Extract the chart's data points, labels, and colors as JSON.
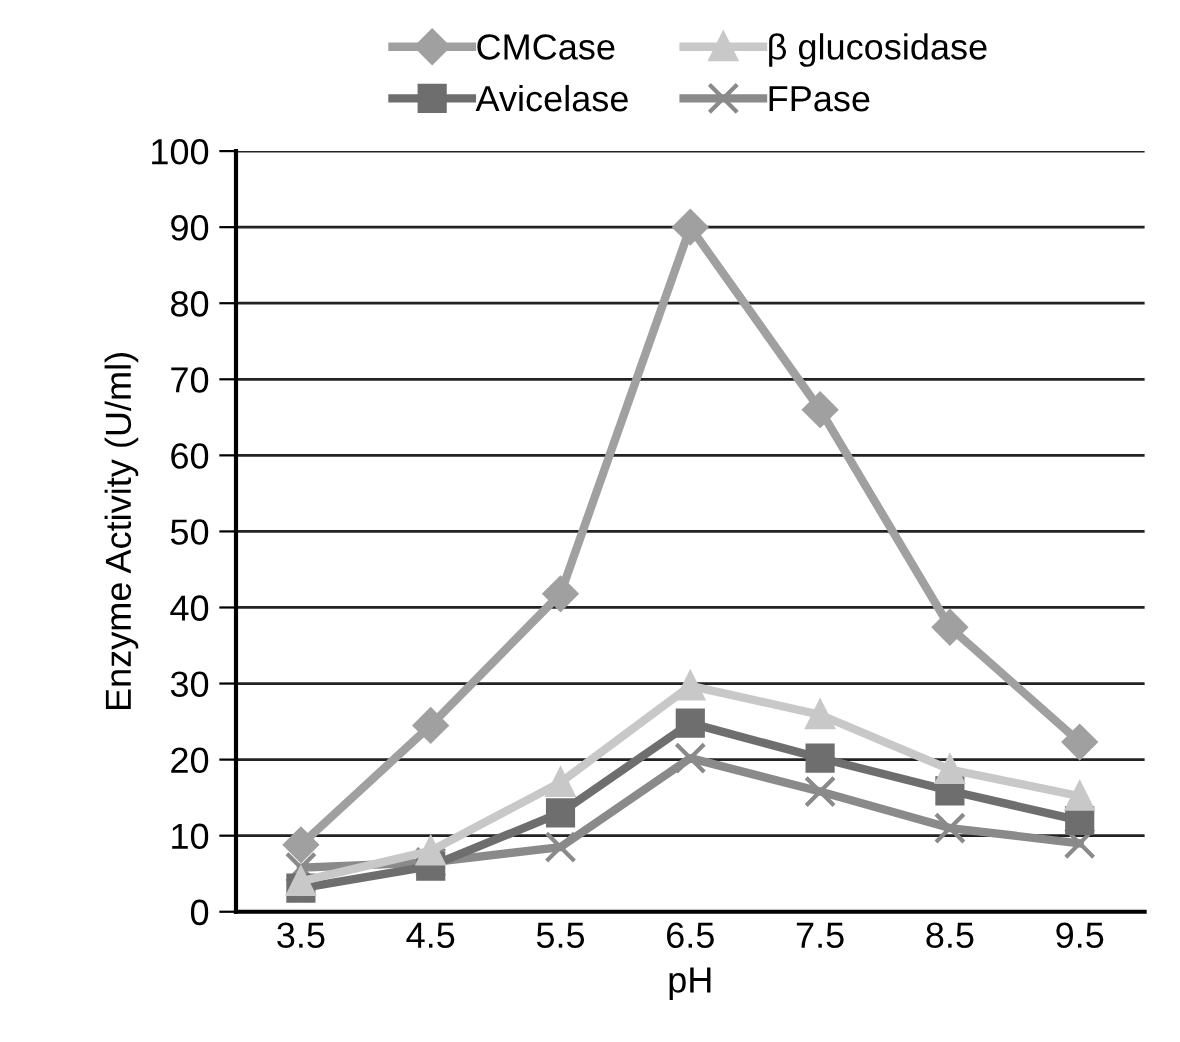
{
  "chart_data": {
    "type": "line",
    "xlabel": "pH",
    "ylabel": "Enzyme Activity (U/ml)",
    "categories": [
      "3.5",
      "4.5",
      "5.5",
      "6.5",
      "7.5",
      "8.5",
      "9.5"
    ],
    "series": [
      {
        "name": "CMCase",
        "color": "#a0a0a0",
        "marker": "diamond",
        "values": [
          8.8,
          24.5,
          41.8,
          90,
          66,
          37.4,
          22.3
        ]
      },
      {
        "name": "β glucosidase",
        "color": "#c8c8c8",
        "marker": "triangle",
        "values": [
          4,
          8,
          17,
          29.7,
          25.9,
          18.7,
          15.2
        ]
      },
      {
        "name": "Avicelase",
        "color": "#6e6e6e",
        "marker": "square",
        "values": [
          3.1,
          6,
          13,
          24.8,
          20.2,
          15.9,
          12
        ]
      },
      {
        "name": "FPase",
        "color": "#8a8a8a",
        "marker": "cross",
        "values": [
          5.8,
          6.5,
          8.5,
          20.2,
          15.8,
          11,
          9
        ]
      }
    ],
    "ylim": [
      0,
      100
    ],
    "yticks": [
      0,
      10,
      20,
      30,
      40,
      50,
      60,
      70,
      80,
      90,
      100
    ],
    "grid": "y",
    "legend": "top"
  }
}
